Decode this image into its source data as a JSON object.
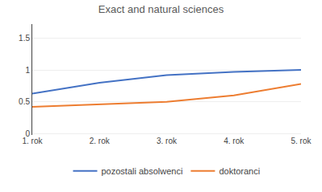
{
  "chart_data": {
    "type": "line",
    "title": "Exact and natural sciences",
    "categories": [
      "1. rok",
      "2. rok",
      "3. rok",
      "4. rok",
      "5. rok"
    ],
    "series": [
      {
        "name": "pozostali absolwenci",
        "color": "#4472C4",
        "values": [
          0.63,
          0.8,
          0.92,
          0.97,
          1.0
        ]
      },
      {
        "name": "doktoranci",
        "color": "#ED7D31",
        "values": [
          0.42,
          0.46,
          0.5,
          0.6,
          0.78
        ]
      }
    ],
    "ylim": [
      -0.02,
      1.72
    ],
    "yticks": [
      0,
      0.5,
      1.0,
      1.5
    ],
    "grid": true,
    "legend": "bottom"
  }
}
